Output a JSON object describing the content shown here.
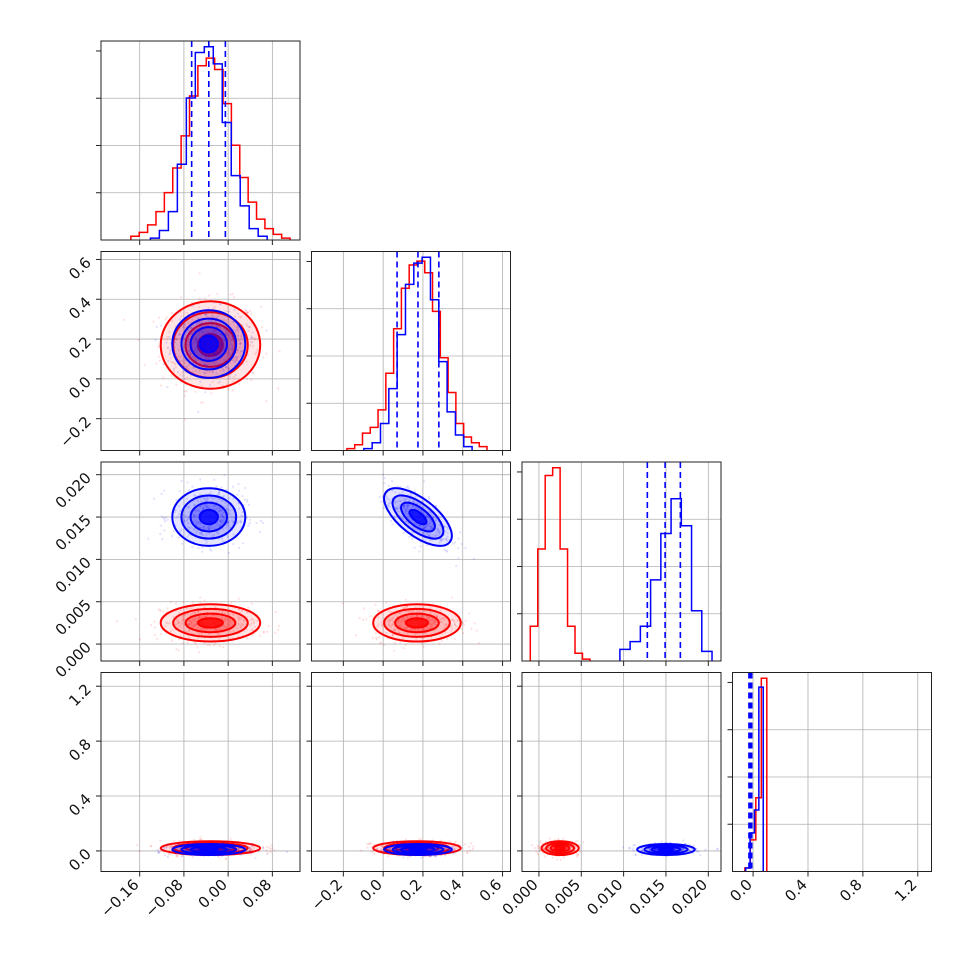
{
  "colors": {
    "series_a": "#ff0000",
    "series_b": "#0000ff",
    "grid": "#b0b0b0"
  },
  "chart_data": {
    "type": "corner",
    "grid": true,
    "params": [
      {
        "lim": [
          -0.23,
          0.13
        ],
        "ticks": [
          -0.16,
          -0.08,
          0.0,
          0.08
        ],
        "tick_labels": [
          "−0.16",
          "−0.08",
          "0.00",
          "0.08"
        ]
      },
      {
        "lim": [
          -0.36,
          0.64
        ],
        "ticks": [
          -0.2,
          0.0,
          0.2,
          0.4,
          0.6
        ],
        "tick_labels": [
          "−0.2",
          "0.0",
          "0.2",
          "0.4",
          "0.6"
        ]
      },
      {
        "lim": [
          -0.002,
          0.0215
        ],
        "ticks": [
          0.0,
          0.005,
          0.01,
          0.015,
          0.02
        ],
        "tick_labels": [
          "0.000",
          "0.005",
          "0.010",
          "0.015",
          "0.020"
        ]
      },
      {
        "lim": [
          -0.15,
          1.3
        ],
        "ticks": [
          0.0,
          0.4,
          0.8,
          1.2
        ],
        "tick_labels": [
          "0.0",
          "0.4",
          "0.8",
          "1.2"
        ]
      }
    ],
    "series": [
      {
        "color": "#ff0000",
        "mean": [
          -0.032,
          0.17,
          0.0025,
          0.02
        ],
        "sd": [
          0.045,
          0.11,
          0.0011,
          0.025
        ],
        "corr": {
          "2-1": 0.0,
          "2-0": 0.0
        },
        "hist_heights": [
          [
            0.02,
            0.04,
            0.08,
            0.15,
            0.25,
            0.38,
            0.55,
            0.76,
            0.92,
            0.96,
            0.9,
            0.72,
            0.5,
            0.33,
            0.2,
            0.11,
            0.06,
            0.03,
            0.01
          ],
          [
            0.01,
            0.03,
            0.09,
            0.12,
            0.21,
            0.4,
            0.63,
            0.84,
            0.96,
            0.98,
            0.92,
            0.72,
            0.48,
            0.3,
            0.14,
            0.07,
            0.04,
            0.02
          ],
          [
            0.18,
            0.58,
            0.96,
            1.0,
            0.58,
            0.18,
            0.04,
            0.01
          ],
          [
            0.02,
            0.18,
            0.42,
            1.1
          ]
        ]
      },
      {
        "color": "#0000ff",
        "mean": [
          -0.035,
          0.175,
          0.015,
          0.01
        ],
        "sd": [
          0.033,
          0.085,
          0.0017,
          0.02
        ],
        "corr": {
          "2-1": -0.65,
          "2-0": 0.0
        },
        "hist_heights": [
          [
            0.01,
            0.05,
            0.15,
            0.4,
            0.75,
            0.99,
            1.02,
            0.93,
            0.62,
            0.34,
            0.18,
            0.06,
            0.02
          ],
          [
            0.01,
            0.04,
            0.14,
            0.32,
            0.6,
            0.86,
            0.97,
            1.0,
            0.78,
            0.46,
            0.2,
            0.08,
            0.02
          ],
          [
            0.06,
            0.1,
            0.18,
            0.42,
            0.66,
            0.84,
            0.7,
            0.26,
            0.05
          ],
          [
            0.02,
            0.22,
            0.35,
            1.05
          ]
        ]
      }
    ],
    "quantiles": [
      [
        -0.066,
        -0.035,
        -0.005
      ],
      [
        0.07,
        0.175,
        0.28
      ],
      [
        0.0128,
        0.0149,
        0.0167
      ],
      [
        -0.03,
        -0.02,
        -0.01
      ]
    ]
  }
}
